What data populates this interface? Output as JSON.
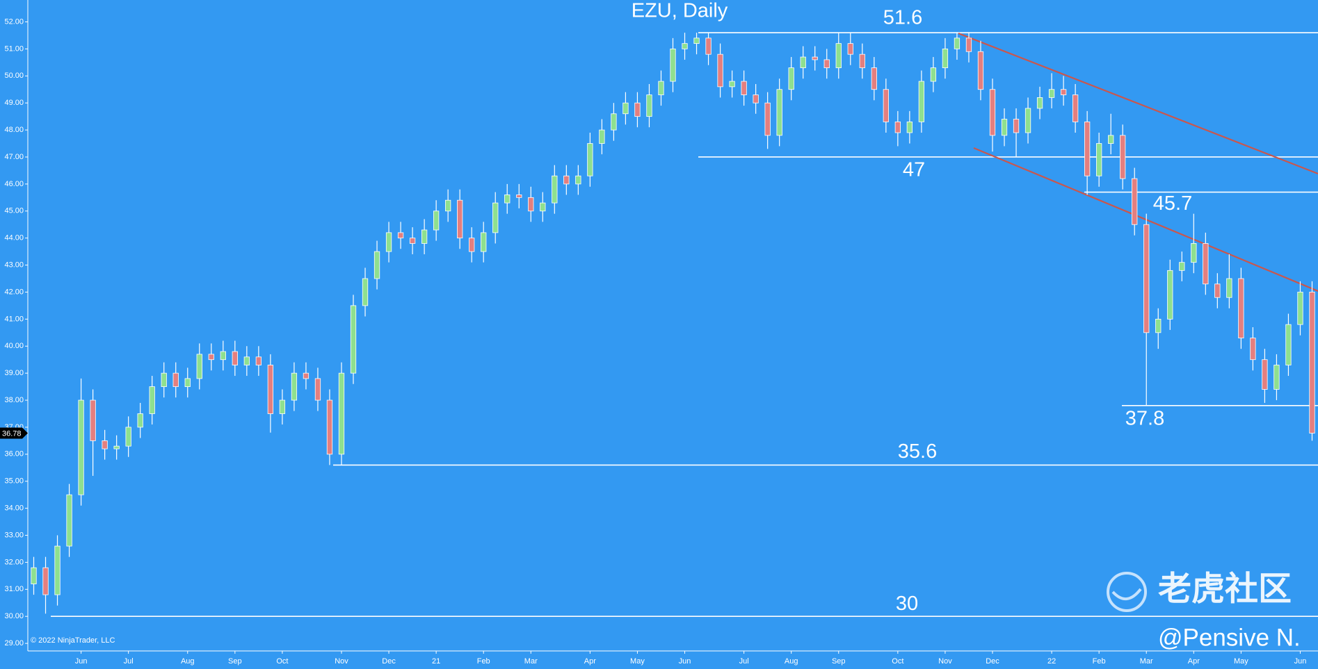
{
  "chart_data": {
    "type": "candlestick",
    "title": "EZU, Daily",
    "copyright": "© 2022 NinjaTrader, LLC",
    "watermark": "老虎社区",
    "author": "@Pensive N.",
    "categories": [
      null,
      null,
      null,
      null,
      "Jun",
      null,
      null,
      null,
      "Jul",
      null,
      null,
      null,
      null,
      "Aug",
      null,
      null,
      null,
      "Sep",
      null,
      null,
      null,
      "Oct",
      null,
      null,
      null,
      null,
      "Nov",
      null,
      null,
      null,
      "Dec",
      null,
      null,
      null,
      "21",
      null,
      null,
      null,
      "Feb",
      null,
      null,
      null,
      "Mar",
      null,
      null,
      null,
      null,
      "Apr",
      null,
      null,
      null,
      "May",
      null,
      null,
      null,
      "Jun",
      null,
      null,
      null,
      null,
      "Jul",
      null,
      null,
      null,
      "Aug",
      null,
      null,
      null,
      "Sep",
      null,
      null,
      null,
      null,
      "Oct",
      null,
      null,
      null,
      "Nov",
      null,
      null,
      null,
      "Dec",
      null,
      null,
      null,
      null,
      "22",
      null,
      null,
      null,
      "Feb",
      null,
      null,
      null,
      "Mar",
      null,
      null,
      null,
      "Apr",
      null,
      null,
      null,
      "May",
      null,
      null,
      null,
      null,
      "Jun",
      null
    ],
    "open": [
      31.2,
      31.8,
      30.8,
      32.6,
      34.5,
      38.0,
      36.5,
      36.2,
      36.3,
      37.0,
      37.5,
      38.5,
      39.0,
      38.5,
      38.8,
      39.7,
      39.5,
      39.8,
      39.3,
      39.6,
      39.3,
      37.5,
      38.0,
      39.0,
      38.8,
      38.0,
      36.0,
      39.0,
      41.5,
      42.5,
      43.5,
      44.2,
      44.0,
      43.8,
      44.3,
      45.0,
      45.4,
      44.0,
      43.5,
      44.2,
      45.3,
      45.6,
      45.5,
      45.0,
      45.3,
      46.3,
      46.0,
      46.3,
      47.5,
      48.0,
      48.6,
      49.0,
      48.5,
      49.3,
      49.8,
      51.0,
      51.2,
      51.4,
      50.8,
      49.6,
      49.8,
      49.3,
      49.0,
      47.8,
      49.5,
      50.3,
      50.7,
      50.6,
      50.3,
      51.2,
      50.8,
      50.3,
      49.5,
      48.3,
      47.9,
      48.3,
      49.8,
      50.3,
      51.0,
      51.4,
      50.9,
      49.5,
      47.8,
      48.4,
      47.9,
      48.8,
      49.2,
      49.5,
      49.3,
      48.3,
      46.3,
      47.5,
      47.8,
      46.2,
      44.5,
      40.5,
      41.0,
      42.8,
      43.1,
      43.8,
      42.3,
      41.8,
      42.5,
      40.3,
      39.5,
      38.4,
      39.3,
      40.8,
      42.0
    ],
    "high": [
      32.2,
      32.2,
      33.0,
      34.9,
      38.8,
      38.4,
      36.9,
      36.7,
      37.4,
      37.9,
      38.9,
      39.4,
      39.4,
      39.2,
      40.1,
      40.1,
      40.2,
      40.2,
      40.0,
      40.0,
      39.7,
      38.4,
      39.4,
      39.4,
      39.2,
      38.4,
      39.4,
      41.9,
      42.9,
      43.9,
      44.6,
      44.6,
      44.4,
      44.7,
      45.4,
      45.8,
      45.8,
      44.4,
      44.6,
      45.7,
      46.0,
      46.0,
      45.9,
      45.7,
      46.7,
      46.7,
      46.7,
      47.9,
      48.4,
      49.0,
      49.4,
      49.4,
      49.7,
      50.2,
      51.4,
      51.6,
      51.6,
      51.6,
      51.2,
      50.2,
      50.2,
      49.7,
      49.4,
      49.9,
      50.7,
      51.1,
      51.1,
      51.0,
      51.6,
      51.6,
      51.2,
      50.7,
      49.9,
      48.7,
      48.7,
      50.2,
      50.7,
      51.4,
      51.6,
      51.6,
      51.3,
      49.9,
      48.8,
      48.8,
      49.2,
      49.6,
      50.1,
      50.0,
      49.7,
      48.7,
      47.9,
      48.6,
      48.2,
      46.6,
      44.9,
      41.4,
      43.2,
      43.5,
      44.9,
      44.2,
      42.7,
      43.4,
      42.9,
      40.7,
      39.9,
      39.7,
      41.2,
      42.4,
      42.4
    ],
    "low": [
      30.8,
      30.1,
      30.4,
      32.2,
      34.1,
      35.2,
      35.8,
      35.8,
      35.9,
      36.6,
      37.1,
      38.1,
      38.1,
      38.1,
      38.4,
      39.1,
      39.1,
      38.9,
      38.9,
      38.9,
      36.8,
      37.1,
      37.6,
      38.4,
      37.6,
      35.6,
      35.6,
      38.6,
      41.1,
      42.1,
      43.1,
      43.6,
      43.4,
      43.4,
      43.9,
      44.6,
      43.6,
      43.1,
      43.1,
      43.8,
      44.9,
      45.1,
      44.6,
      44.6,
      44.9,
      45.6,
      45.6,
      45.9,
      47.1,
      47.6,
      48.2,
      48.1,
      48.1,
      48.9,
      49.4,
      50.6,
      50.8,
      50.4,
      49.2,
      49.2,
      48.9,
      48.6,
      47.3,
      47.4,
      49.1,
      49.9,
      50.2,
      49.9,
      49.9,
      50.4,
      49.9,
      49.1,
      47.9,
      47.4,
      47.5,
      47.9,
      49.4,
      49.9,
      50.6,
      50.5,
      49.1,
      47.2,
      47.4,
      47.0,
      47.5,
      48.4,
      48.8,
      48.9,
      47.9,
      45.6,
      45.9,
      47.1,
      45.8,
      44.1,
      37.8,
      39.9,
      40.6,
      42.4,
      42.7,
      41.9,
      41.4,
      41.4,
      39.9,
      39.1,
      37.9,
      38.0,
      38.9,
      40.4,
      36.5
    ],
    "close": [
      31.8,
      30.8,
      32.6,
      34.5,
      38.0,
      36.5,
      36.2,
      36.3,
      37.0,
      37.5,
      38.5,
      39.0,
      38.5,
      38.8,
      39.7,
      39.5,
      39.8,
      39.3,
      39.6,
      39.3,
      37.5,
      38.0,
      39.0,
      38.8,
      38.0,
      36.0,
      39.0,
      41.5,
      42.5,
      43.5,
      44.2,
      44.0,
      43.8,
      44.3,
      45.0,
      45.4,
      44.0,
      43.5,
      44.2,
      45.3,
      45.6,
      45.5,
      45.0,
      45.3,
      46.3,
      46.0,
      46.3,
      47.5,
      48.0,
      48.6,
      49.0,
      48.5,
      49.3,
      49.8,
      51.0,
      51.2,
      51.4,
      50.8,
      49.6,
      49.8,
      49.3,
      49.0,
      47.8,
      49.5,
      50.3,
      50.7,
      50.6,
      50.3,
      51.2,
      50.8,
      50.3,
      49.5,
      48.3,
      47.9,
      48.3,
      49.8,
      50.3,
      51.0,
      51.4,
      50.9,
      49.5,
      47.8,
      48.4,
      47.9,
      48.8,
      49.2,
      49.5,
      49.3,
      48.3,
      46.3,
      47.5,
      47.8,
      46.2,
      44.5,
      40.5,
      41.0,
      42.8,
      43.1,
      43.8,
      42.3,
      41.8,
      42.5,
      40.3,
      39.5,
      38.4,
      39.3,
      40.8,
      42.0,
      36.78
    ],
    "up_color": "#8fe08f",
    "down_color": "#e47f7f",
    "level_color": "#ffffff",
    "trend_color": "#c9574e",
    "levels": [
      51.6,
      47,
      45.7,
      37.8,
      35.6,
      30
    ],
    "ylim": [
      28.72,
      52.81
    ],
    "yticks": [
      {
        "value": 29,
        "label": "29.00"
      },
      {
        "value": 30,
        "label": "30.00"
      },
      {
        "value": 31,
        "label": "31.00"
      },
      {
        "value": 32,
        "label": "32.00"
      },
      {
        "value": 33,
        "label": "33.00"
      },
      {
        "value": 34,
        "label": "34.00"
      },
      {
        "value": 35,
        "label": "35.00"
      },
      {
        "value": 36,
        "label": "36.00"
      },
      {
        "value": 37,
        "label": "37.00"
      },
      {
        "value": 38,
        "label": "38.00"
      },
      {
        "value": 39,
        "label": "39.00"
      },
      {
        "value": 40,
        "label": "40.00"
      },
      {
        "value": 41,
        "label": "41.00"
      },
      {
        "value": 42,
        "label": "42.00"
      },
      {
        "value": 43,
        "label": "43.00"
      },
      {
        "value": 44,
        "label": "44.00"
      },
      {
        "value": 45,
        "label": "45.00"
      },
      {
        "value": 46,
        "label": "46.00"
      },
      {
        "value": 47,
        "label": "47.00"
      },
      {
        "value": 48,
        "label": "48.00"
      },
      {
        "value": 49,
        "label": "49.00"
      },
      {
        "value": 50,
        "label": "50.00"
      },
      {
        "value": 51,
        "label": "51.00"
      },
      {
        "value": 52,
        "label": "52.00"
      }
    ]
  }
}
